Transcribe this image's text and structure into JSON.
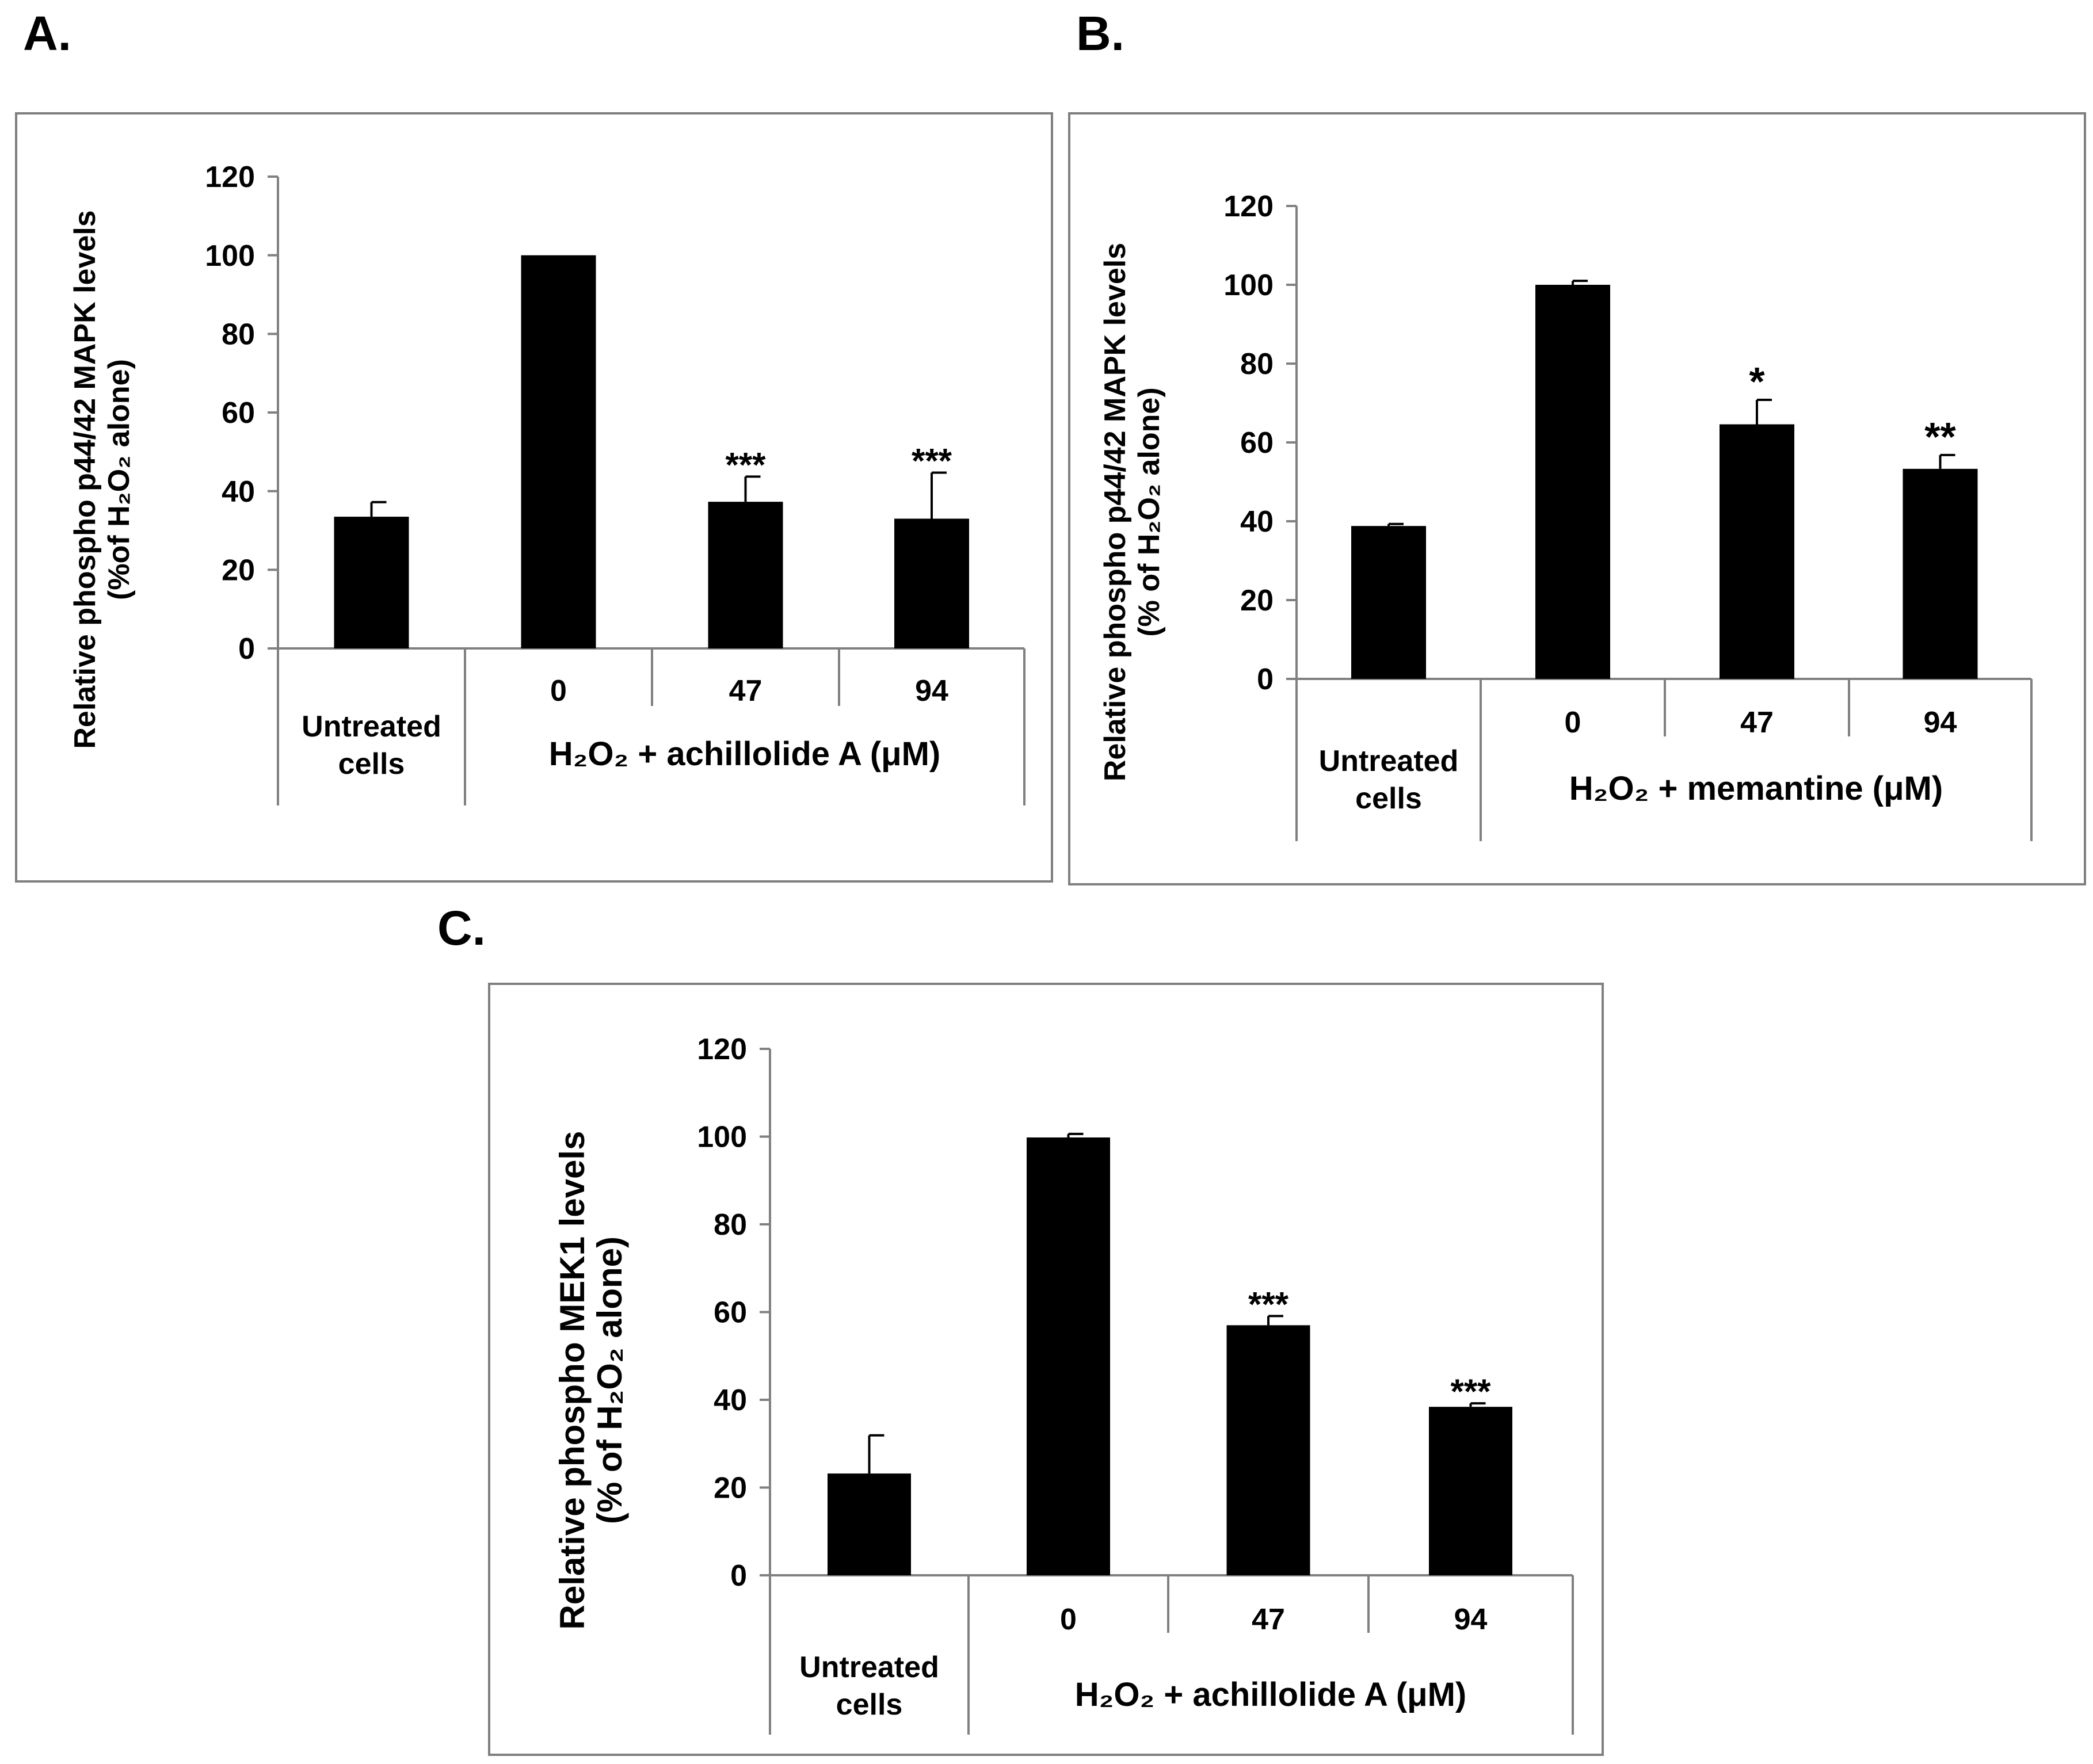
{
  "panels": [
    {
      "letter": "A."
    },
    {
      "letter": "B."
    },
    {
      "letter": "C."
    }
  ],
  "chart_data": [
    {
      "type": "bar",
      "ylabel_lines": [
        "Relative phospho p44/42 MAPK levels",
        "(%of H₂O₂ alone)"
      ],
      "yticks": [
        "0",
        "20",
        "40",
        "60",
        "80",
        "100",
        "120"
      ],
      "ylim": [
        0,
        120
      ],
      "categories": [
        "Untreated cells",
        "0",
        "47",
        "94"
      ],
      "control_label_lines": [
        "Untreated",
        "cells"
      ],
      "group_label": "H₂O₂ + achillolide  A (μM)",
      "values": [
        33.5,
        100,
        37.3,
        33.0
      ],
      "errors": [
        3.7,
        0,
        6.4,
        11.7
      ],
      "significance": [
        "",
        "",
        "***",
        "***"
      ]
    },
    {
      "type": "bar",
      "ylabel_lines": [
        "Relative phospho p44/42 MAPK  levels",
        "(% of H₂O₂ alone)"
      ],
      "yticks": [
        "0",
        "20",
        "40",
        "60",
        "80",
        "100",
        "120"
      ],
      "ylim": [
        0,
        120
      ],
      "categories": [
        "Untreated cells",
        "0",
        "47",
        "94"
      ],
      "control_label_lines": [
        "Untreated",
        "cells"
      ],
      "group_label": "H₂O₂ + memantine (μM)",
      "values": [
        38.8,
        100,
        64.6,
        53.3
      ],
      "errors": [
        0.5,
        1.0,
        6.2,
        3.5
      ],
      "significance": [
        "",
        "",
        "*",
        "**"
      ]
    },
    {
      "type": "bar",
      "ylabel_lines": [
        "Relative phospho MEK1 levels",
        "(% of H₂O₂ alone)"
      ],
      "yticks": [
        "0",
        "20",
        "40",
        "60",
        "80",
        "100",
        "120"
      ],
      "ylim": [
        0,
        120
      ],
      "categories": [
        "Untreated cells",
        "0",
        "47",
        "94"
      ],
      "control_label_lines": [
        "Untreated",
        "cells"
      ],
      "group_label": "H₂O₂ + achillolide  A (μM)",
      "values": [
        23.2,
        99.8,
        57.0,
        38.4
      ],
      "errors": [
        8.7,
        0.8,
        2.1,
        0.8
      ],
      "significance": [
        "",
        "",
        "***",
        "***"
      ]
    }
  ]
}
